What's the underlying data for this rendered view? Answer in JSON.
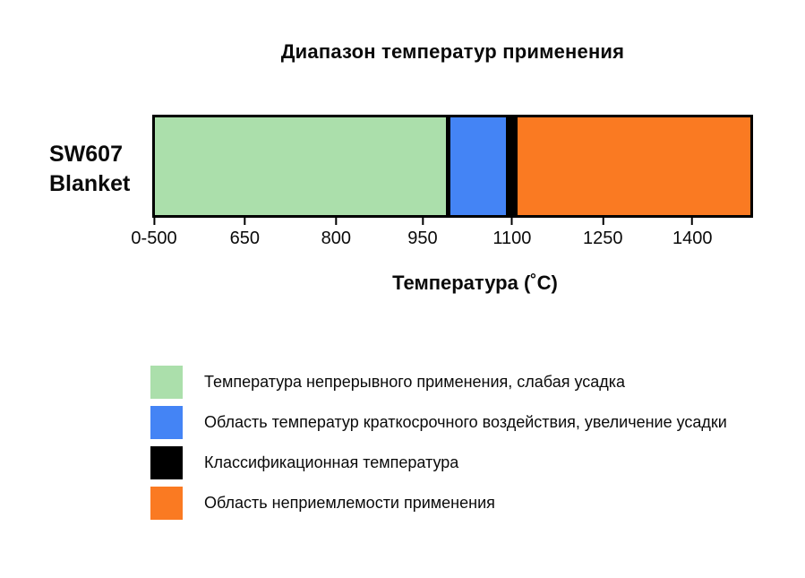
{
  "chart_data": {
    "type": "bar",
    "orientation": "horizontal-stacked-range",
    "title": "Диапазон температур применения",
    "xlabel": "Температура (˚C)",
    "categories": [
      "SW607 Blanket"
    ],
    "row_label_lines": [
      "SW607",
      "Blanket"
    ],
    "axis_tick_labels": [
      "0-500",
      "650",
      "800",
      "950",
      "1100",
      "1250",
      "1400"
    ],
    "axis_range_c": [
      500,
      1500
    ],
    "segments": [
      {
        "label": "Температура непрерывного применения, слабая усадка",
        "color": "#abdfab",
        "from_c": 0,
        "to_c": 1000,
        "width_pct": "48.9%"
      },
      {
        "label": "Область температур краткосрочного воздействия, увеличение усадки",
        "color": "#4484f5",
        "from_c": 1000,
        "to_c": 1090,
        "width_pct": "10.0%"
      },
      {
        "label": "Классификационная температура",
        "color": "#000000",
        "value_c": 1100,
        "width_pct": "2.0%"
      },
      {
        "label": "Область неприемлемости применения",
        "color": "#fa7a22",
        "from_c": 1110,
        "to_c": 1500,
        "width_pct": "39.1%"
      }
    ]
  },
  "legend": {
    "items": [
      {
        "label": "Температура непрерывного применения, слабая усадка",
        "color": "#abdfab"
      },
      {
        "label": "Область температур краткосрочного воздействия, увеличение усадки",
        "color": "#4484f5"
      },
      {
        "label": "Классификационная температура",
        "color": "#000000"
      },
      {
        "label": "Область неприемлемости применения",
        "color": "#fa7a22"
      }
    ]
  }
}
